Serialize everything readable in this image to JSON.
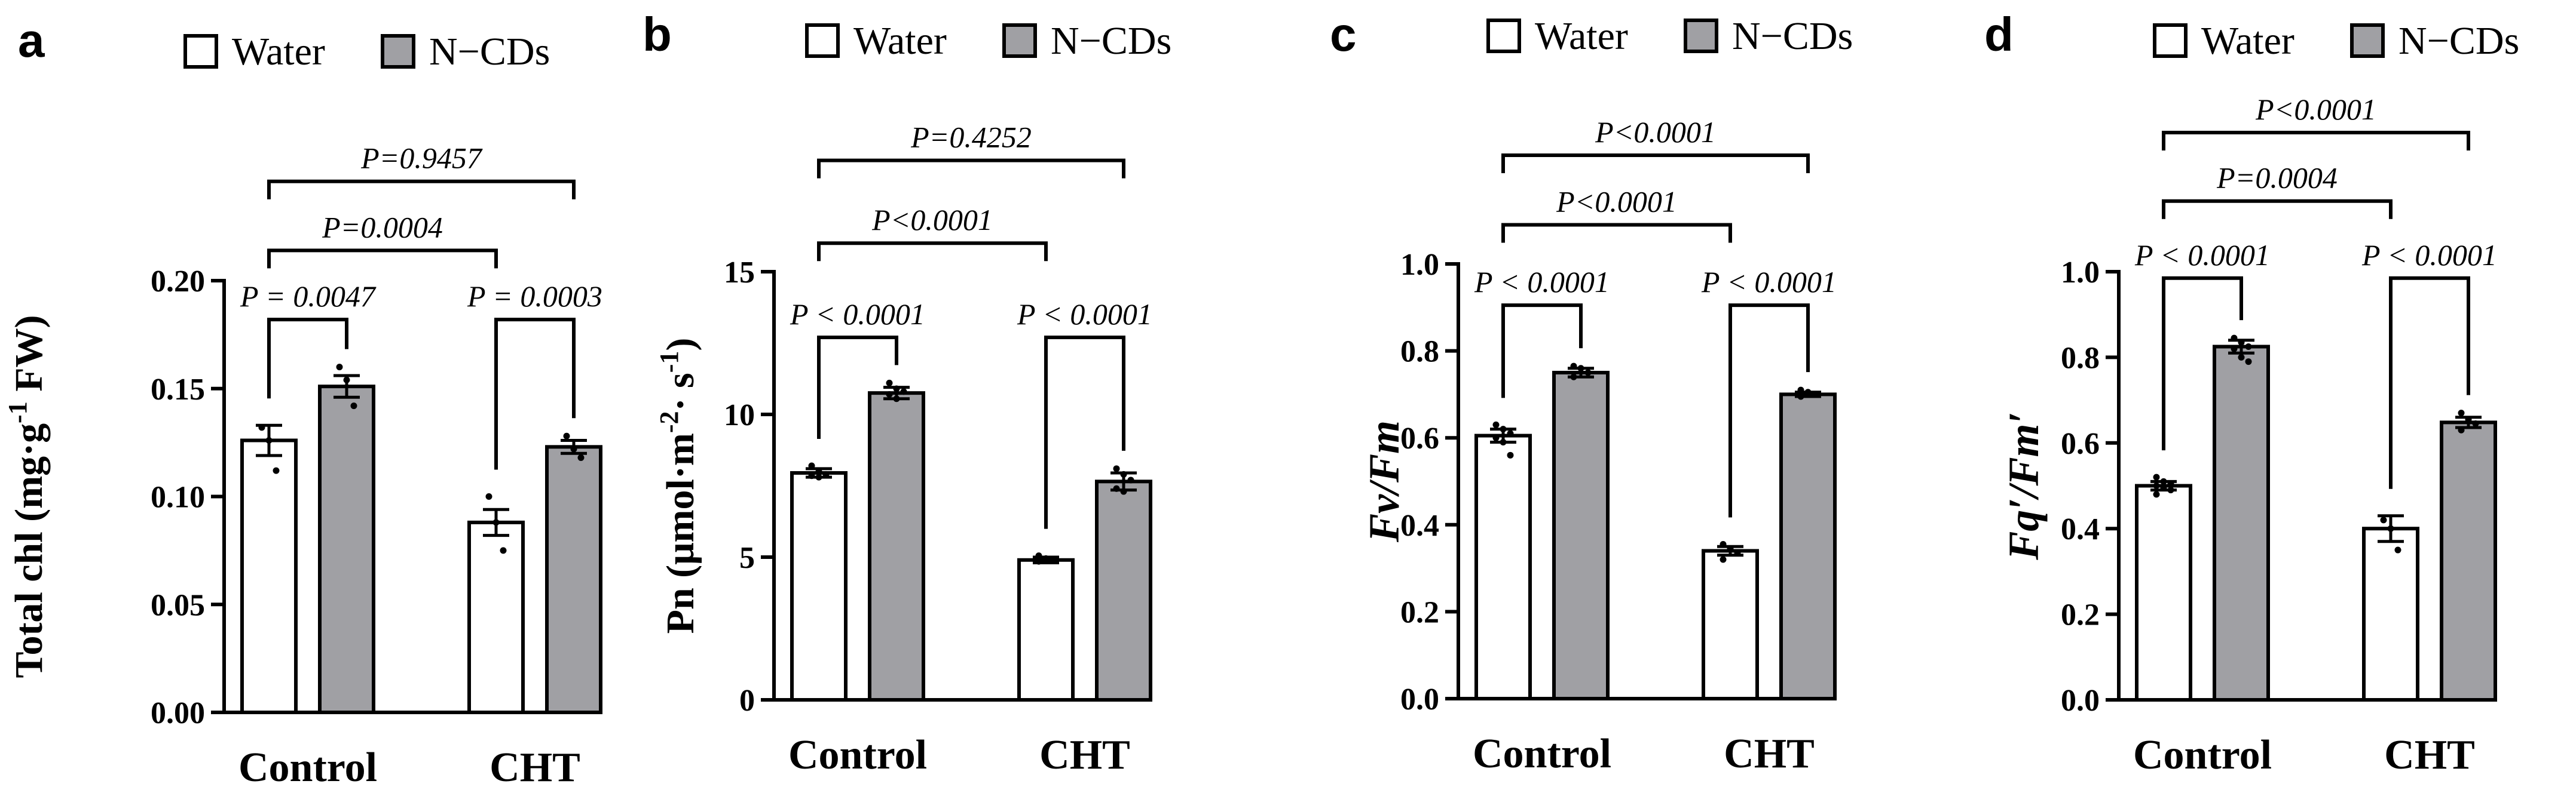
{
  "figure": {
    "legend": {
      "water": "Water",
      "ncds": "N−CDs"
    },
    "colors": {
      "water": "#ffffff",
      "ncds": "#a0a0a4",
      "edge": "#000000"
    }
  },
  "chart_data": [
    {
      "type": "bar",
      "panel": "a",
      "categories": [
        "Control",
        "CHT"
      ],
      "series": [
        {
          "name": "Water",
          "values": [
            0.126,
            0.088
          ],
          "sem": [
            0.007,
            0.006
          ],
          "points": [
            [
              0.132,
              0.126,
              0.112
            ],
            [
              0.1,
              0.088,
              0.075
            ]
          ]
        },
        {
          "name": "N−CDs",
          "values": [
            0.151,
            0.123
          ],
          "sem": [
            0.005,
            0.003
          ],
          "points": [
            [
              0.16,
              0.154,
              0.142
            ],
            [
              0.128,
              0.122,
              0.118
            ]
          ]
        }
      ],
      "ylim": [
        0,
        0.2
      ],
      "yticks": [
        0,
        0.05,
        0.1,
        0.15,
        0.2
      ],
      "ytick_labels": [
        "0.00",
        "0.05",
        "0.10",
        "0.15",
        "0.20"
      ],
      "ylabel_parts": [
        {
          "text": "Total chl (mg·g"
        },
        {
          "text": "-1",
          "sup": true
        },
        {
          "text": " FW)"
        }
      ],
      "ylabel_style": "normal",
      "annotations": [
        {
          "kind": "pair",
          "label": "P = 0.0047",
          "from": [
            0,
            0
          ],
          "to": [
            0,
            1
          ],
          "top": 0.182
        },
        {
          "kind": "pair",
          "label": "P = 0.0003",
          "from": [
            1,
            0
          ],
          "to": [
            1,
            1
          ],
          "top": 0.182
        },
        {
          "kind": "bracket",
          "label": "P=0.0004",
          "from": [
            0,
            0
          ],
          "to": [
            1,
            0
          ],
          "top": 0.214
        },
        {
          "kind": "bracket",
          "label": "P=0.9457",
          "from": [
            0,
            0
          ],
          "to": [
            1,
            1
          ],
          "top": 0.246
        }
      ]
    },
    {
      "type": "bar",
      "panel": "b",
      "categories": [
        "Control",
        "CHT"
      ],
      "series": [
        {
          "name": "Water",
          "values": [
            7.95,
            4.9
          ],
          "sem": [
            0.15,
            0.1
          ],
          "points": [
            [
              8.2,
              8.0,
              7.9,
              7.85,
              7.8
            ],
            [
              5.05,
              4.95,
              4.9,
              4.85
            ]
          ]
        },
        {
          "name": "N−CDs",
          "values": [
            10.75,
            7.65
          ],
          "sem": [
            0.2,
            0.3
          ],
          "points": [
            [
              11.1,
              10.9,
              10.8,
              10.7,
              10.55
            ],
            [
              8.1,
              7.9,
              7.7,
              7.4,
              7.3
            ]
          ]
        }
      ],
      "ylim": [
        0,
        15
      ],
      "yticks": [
        0,
        5,
        10,
        15
      ],
      "ytick_labels": [
        "0",
        "5",
        "10",
        "15"
      ],
      "ylabel_parts": [
        {
          "text": "Pn (μmol·m"
        },
        {
          "text": "-2",
          "sup": true
        },
        {
          "text": "· s"
        },
        {
          "text": "-1",
          "sup": true
        },
        {
          "text": ")"
        }
      ],
      "ylabel_style": "normal",
      "annotations": [
        {
          "kind": "pair",
          "label": "P < 0.0001",
          "from": [
            0,
            0
          ],
          "to": [
            0,
            1
          ],
          "top": 12.7
        },
        {
          "kind": "pair",
          "label": "P < 0.0001",
          "from": [
            1,
            0
          ],
          "to": [
            1,
            1
          ],
          "top": 12.7
        },
        {
          "kind": "bracket",
          "label": "P<0.0001",
          "from": [
            0,
            0
          ],
          "to": [
            1,
            0
          ],
          "top": 16.0
        },
        {
          "kind": "bracket",
          "label": "P=0.4252",
          "from": [
            0,
            0
          ],
          "to": [
            1,
            1
          ],
          "top": 18.9
        }
      ]
    },
    {
      "type": "bar",
      "panel": "c",
      "categories": [
        "Control",
        "CHT"
      ],
      "series": [
        {
          "name": "Water",
          "values": [
            0.605,
            0.34
          ],
          "sem": [
            0.015,
            0.01
          ],
          "points": [
            [
              0.63,
              0.62,
              0.61,
              0.6,
              0.59,
              0.56
            ],
            [
              0.355,
              0.345,
              0.335,
              0.32
            ]
          ]
        },
        {
          "name": "N−CDs",
          "values": [
            0.75,
            0.7
          ],
          "sem": [
            0.01,
            0.005
          ],
          "points": [
            [
              0.765,
              0.76,
              0.75,
              0.74
            ],
            [
              0.71,
              0.705,
              0.7,
              0.695
            ]
          ]
        }
      ],
      "ylim": [
        0,
        1
      ],
      "yticks": [
        0,
        0.2,
        0.4,
        0.6,
        0.8,
        1.0
      ],
      "ytick_labels": [
        "0.0",
        "0.2",
        "0.4",
        "0.6",
        "0.8",
        "1.0"
      ],
      "ylabel_parts": [
        {
          "text": "Fv/Fm"
        }
      ],
      "ylabel_style": "italic",
      "annotations": [
        {
          "kind": "pair",
          "label": "P < 0.0001",
          "from": [
            0,
            0
          ],
          "to": [
            0,
            1
          ],
          "top": 0.905
        },
        {
          "kind": "pair",
          "label": "P < 0.0001",
          "from": [
            1,
            0
          ],
          "to": [
            1,
            1
          ],
          "top": 0.905
        },
        {
          "kind": "bracket",
          "label": "P<0.0001",
          "from": [
            0,
            0
          ],
          "to": [
            1,
            0
          ],
          "top": 1.09
        },
        {
          "kind": "bracket",
          "label": "P<0.0001",
          "from": [
            0,
            0
          ],
          "to": [
            1,
            1
          ],
          "top": 1.25
        }
      ]
    },
    {
      "type": "bar",
      "panel": "d",
      "categories": [
        "Control",
        "CHT"
      ],
      "series": [
        {
          "name": "Water",
          "values": [
            0.5,
            0.4
          ],
          "sem": [
            0.01,
            0.03
          ],
          "points": [
            [
              0.52,
              0.51,
              0.505,
              0.5,
              0.495,
              0.49,
              0.48
            ],
            [
              0.42,
              0.4,
              0.35
            ]
          ]
        },
        {
          "name": "N−CDs",
          "values": [
            0.825,
            0.648
          ],
          "sem": [
            0.015,
            0.012
          ],
          "points": [
            [
              0.845,
              0.835,
              0.825,
              0.82,
              0.8,
              0.79
            ],
            [
              0.67,
              0.655,
              0.645,
              0.63
            ]
          ]
        }
      ],
      "ylim": [
        0,
        1
      ],
      "yticks": [
        0,
        0.2,
        0.4,
        0.6,
        0.8,
        1.0
      ],
      "ytick_labels": [
        "0.0",
        "0.2",
        "0.4",
        "0.6",
        "0.8",
        "1.0"
      ],
      "ylabel_parts": [
        {
          "text": "Fq′/Fm′"
        }
      ],
      "ylabel_style": "italic",
      "annotations": [
        {
          "kind": "pair",
          "label": "P < 0.0001",
          "from": [
            0,
            0
          ],
          "to": [
            0,
            1
          ],
          "top": 0.985
        },
        {
          "kind": "pair",
          "label": "P < 0.0001",
          "from": [
            1,
            0
          ],
          "to": [
            1,
            1
          ],
          "top": 0.985
        },
        {
          "kind": "bracket",
          "label": "P=0.0004",
          "from": [
            0,
            0
          ],
          "to": [
            1,
            0
          ],
          "top": 1.165
        },
        {
          "kind": "bracket",
          "label": "P<0.0001",
          "from": [
            0,
            0
          ],
          "to": [
            1,
            1
          ],
          "top": 1.325
        }
      ]
    }
  ]
}
